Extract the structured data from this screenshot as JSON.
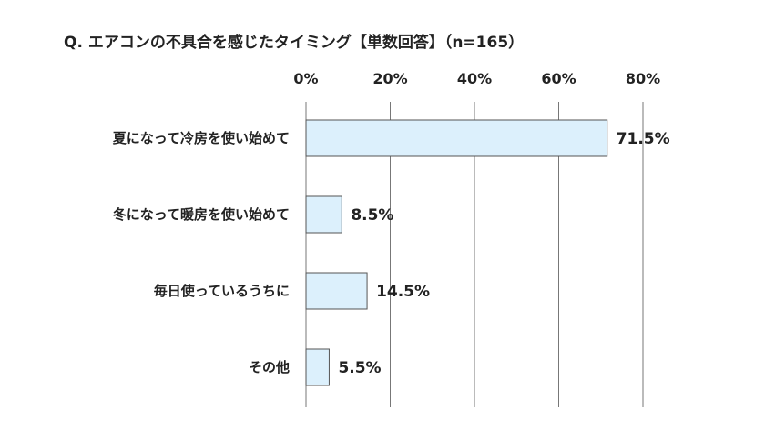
{
  "chart_data": {
    "type": "bar",
    "orientation": "horizontal",
    "title": "Q.  エアコンの不具合を感じたタイミング【単数回答】（n=165）",
    "categories": [
      "夏になって冷房を使い始めて",
      "冬になって暖房を使い始めて",
      "毎日使っているうちに",
      "その他"
    ],
    "values": [
      71.5,
      8.5,
      14.5,
      5.5
    ],
    "value_labels": [
      "71.5%",
      "8.5%",
      "14.5%",
      "5.5%"
    ],
    "xlim": [
      0,
      80
    ],
    "xticks": [
      0,
      20,
      40,
      60,
      80
    ],
    "xtick_labels": [
      "0%",
      "20%",
      "40%",
      "60%",
      "80%"
    ],
    "x_axis_position": "top",
    "grid": true,
    "legend": "none",
    "colors": {
      "bar_fill": "#dcf0fc",
      "bar_stroke": "#555555",
      "grid": "#777777",
      "text": "#222222"
    }
  }
}
